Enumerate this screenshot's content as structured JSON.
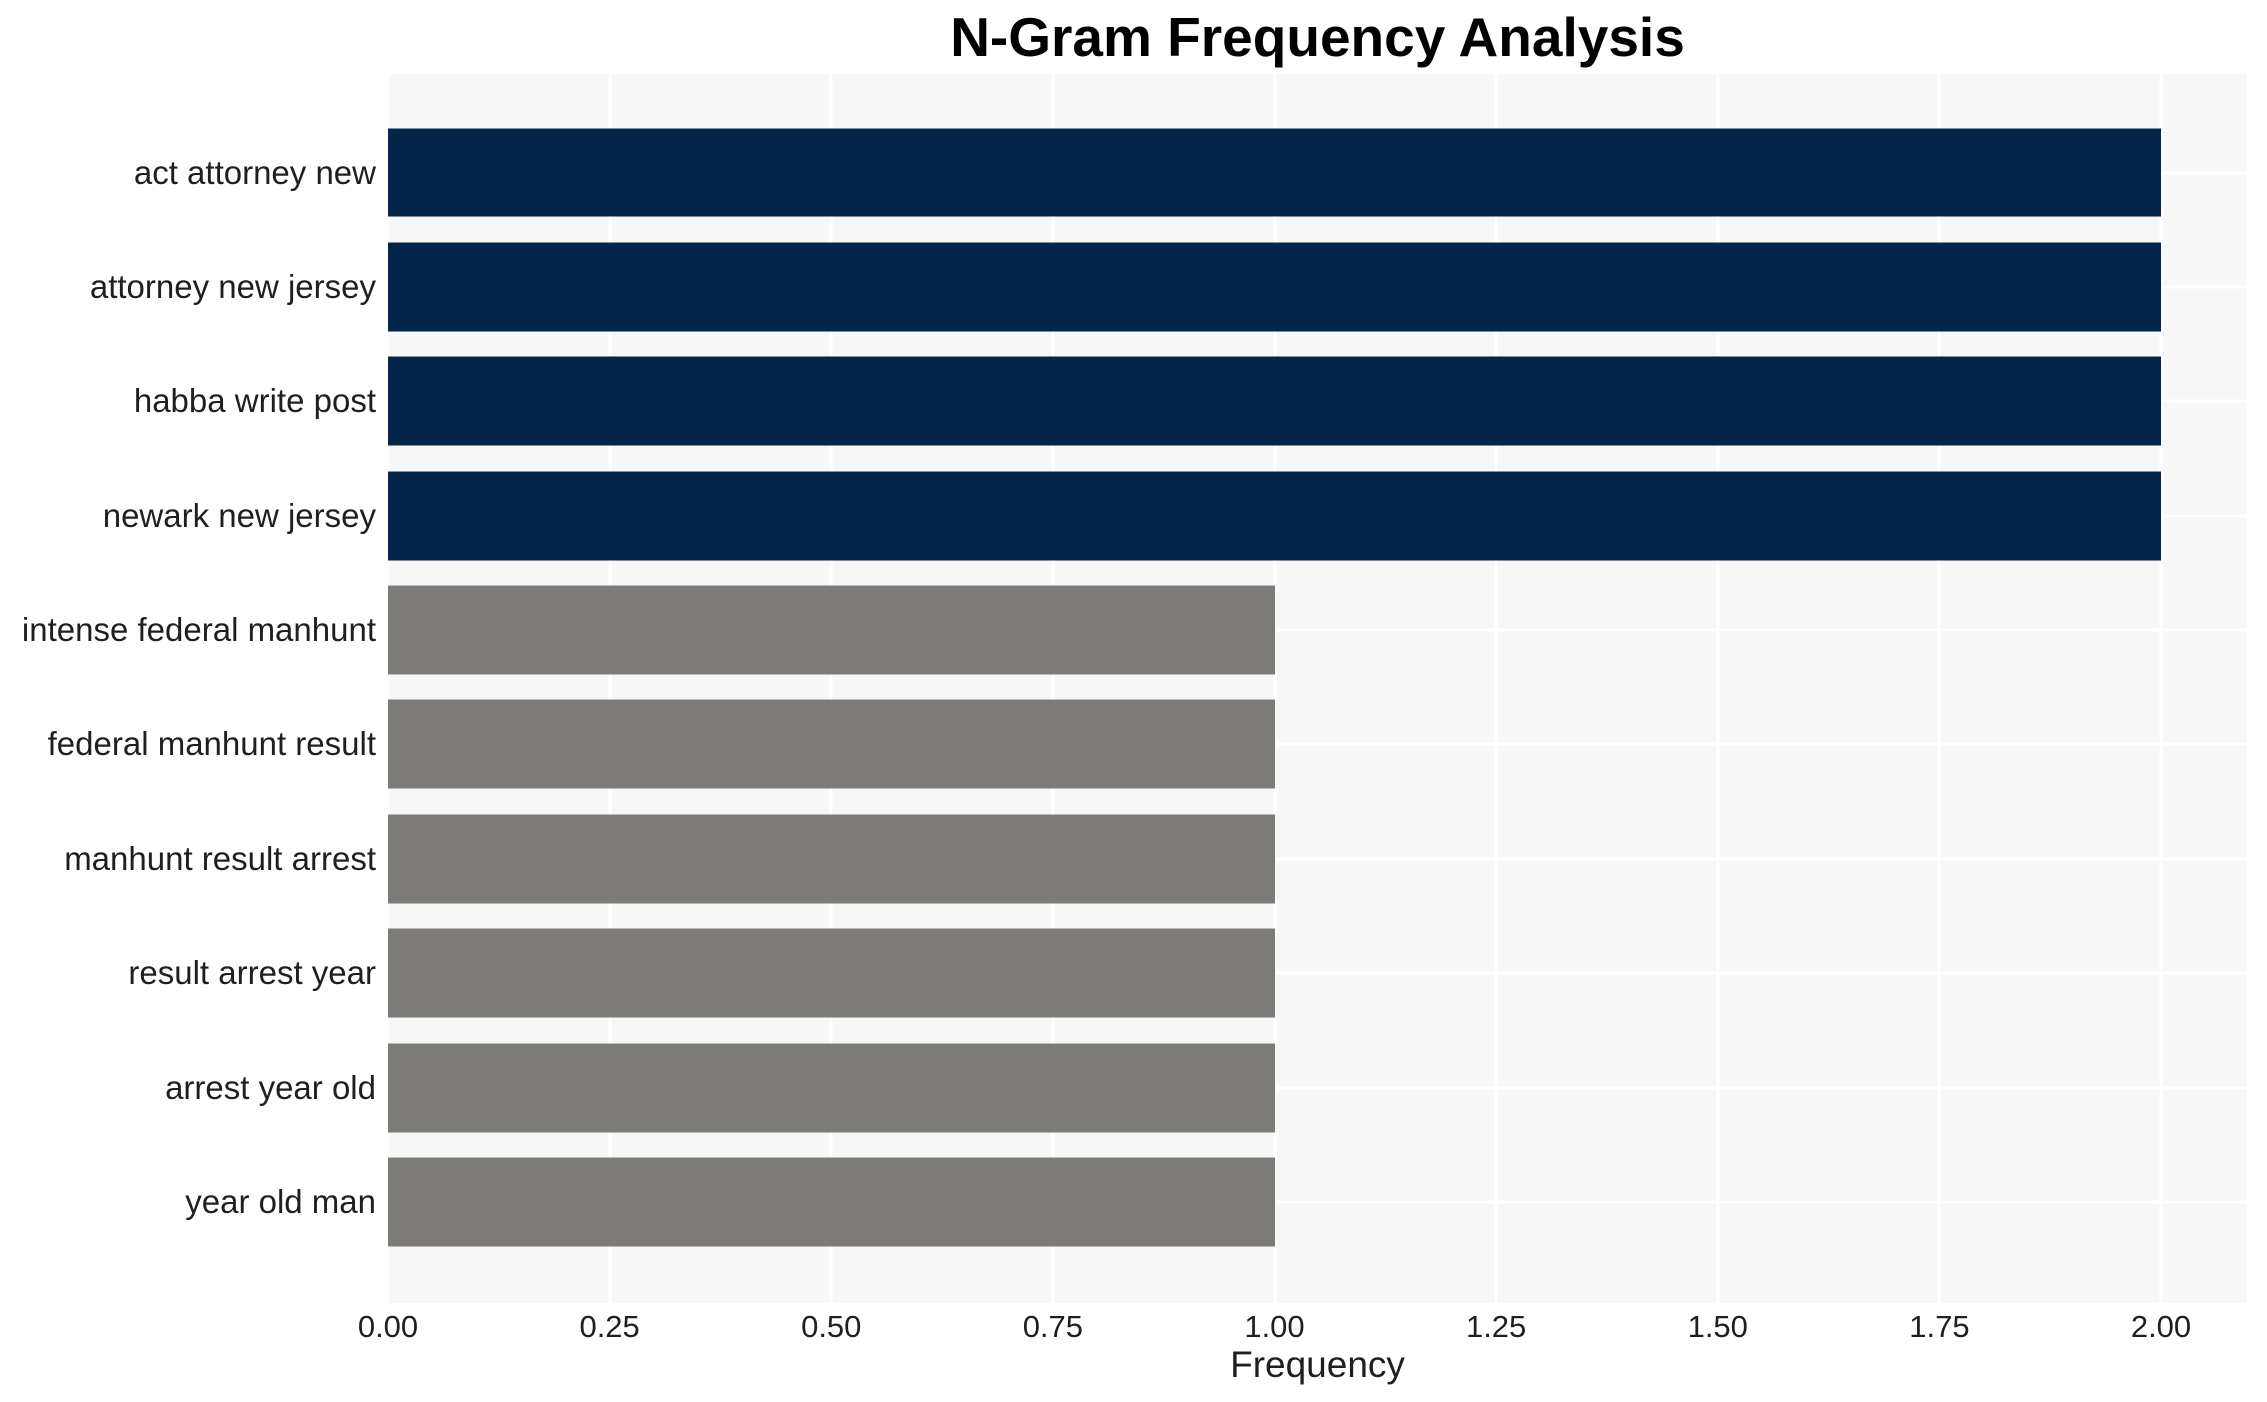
{
  "title": "N-Gram Frequency Analysis",
  "x_axis_label": "Frequency",
  "chart_data": {
    "type": "bar",
    "orientation": "horizontal",
    "title": "N-Gram Frequency Analysis",
    "xlabel": "Frequency",
    "ylabel": "",
    "categories": [
      "act attorney new",
      "attorney new jersey",
      "habba write post",
      "newark new jersey",
      "intense federal manhunt",
      "federal manhunt result",
      "manhunt result arrest",
      "result arrest year",
      "arrest year old",
      "year old man"
    ],
    "values": [
      2,
      2,
      2,
      2,
      1,
      1,
      1,
      1,
      1,
      1
    ],
    "bar_colors": [
      "#032549",
      "#032549",
      "#032549",
      "#032549",
      "#7c7b77",
      "#7c7b77",
      "#7c7b77",
      "#7c7b77",
      "#7c7b77",
      "#7c7b77"
    ],
    "xticks": [
      0,
      0.25,
      0.5,
      0.75,
      1.0,
      1.25,
      1.5,
      1.75,
      2.0
    ],
    "xtick_labels": [
      "0.00",
      "0.25",
      "0.50",
      "0.75",
      "1.00",
      "1.25",
      "1.50",
      "1.75",
      "2.00"
    ],
    "xlim": [
      0,
      2.097
    ],
    "grid": true,
    "legend_position": "none",
    "style": {
      "plot_background": "#f7f7f7",
      "figure_background": "#ffffff",
      "grid_color": "#ffffff",
      "text_color": "#1f1f1f",
      "title_color": "#000000"
    }
  }
}
